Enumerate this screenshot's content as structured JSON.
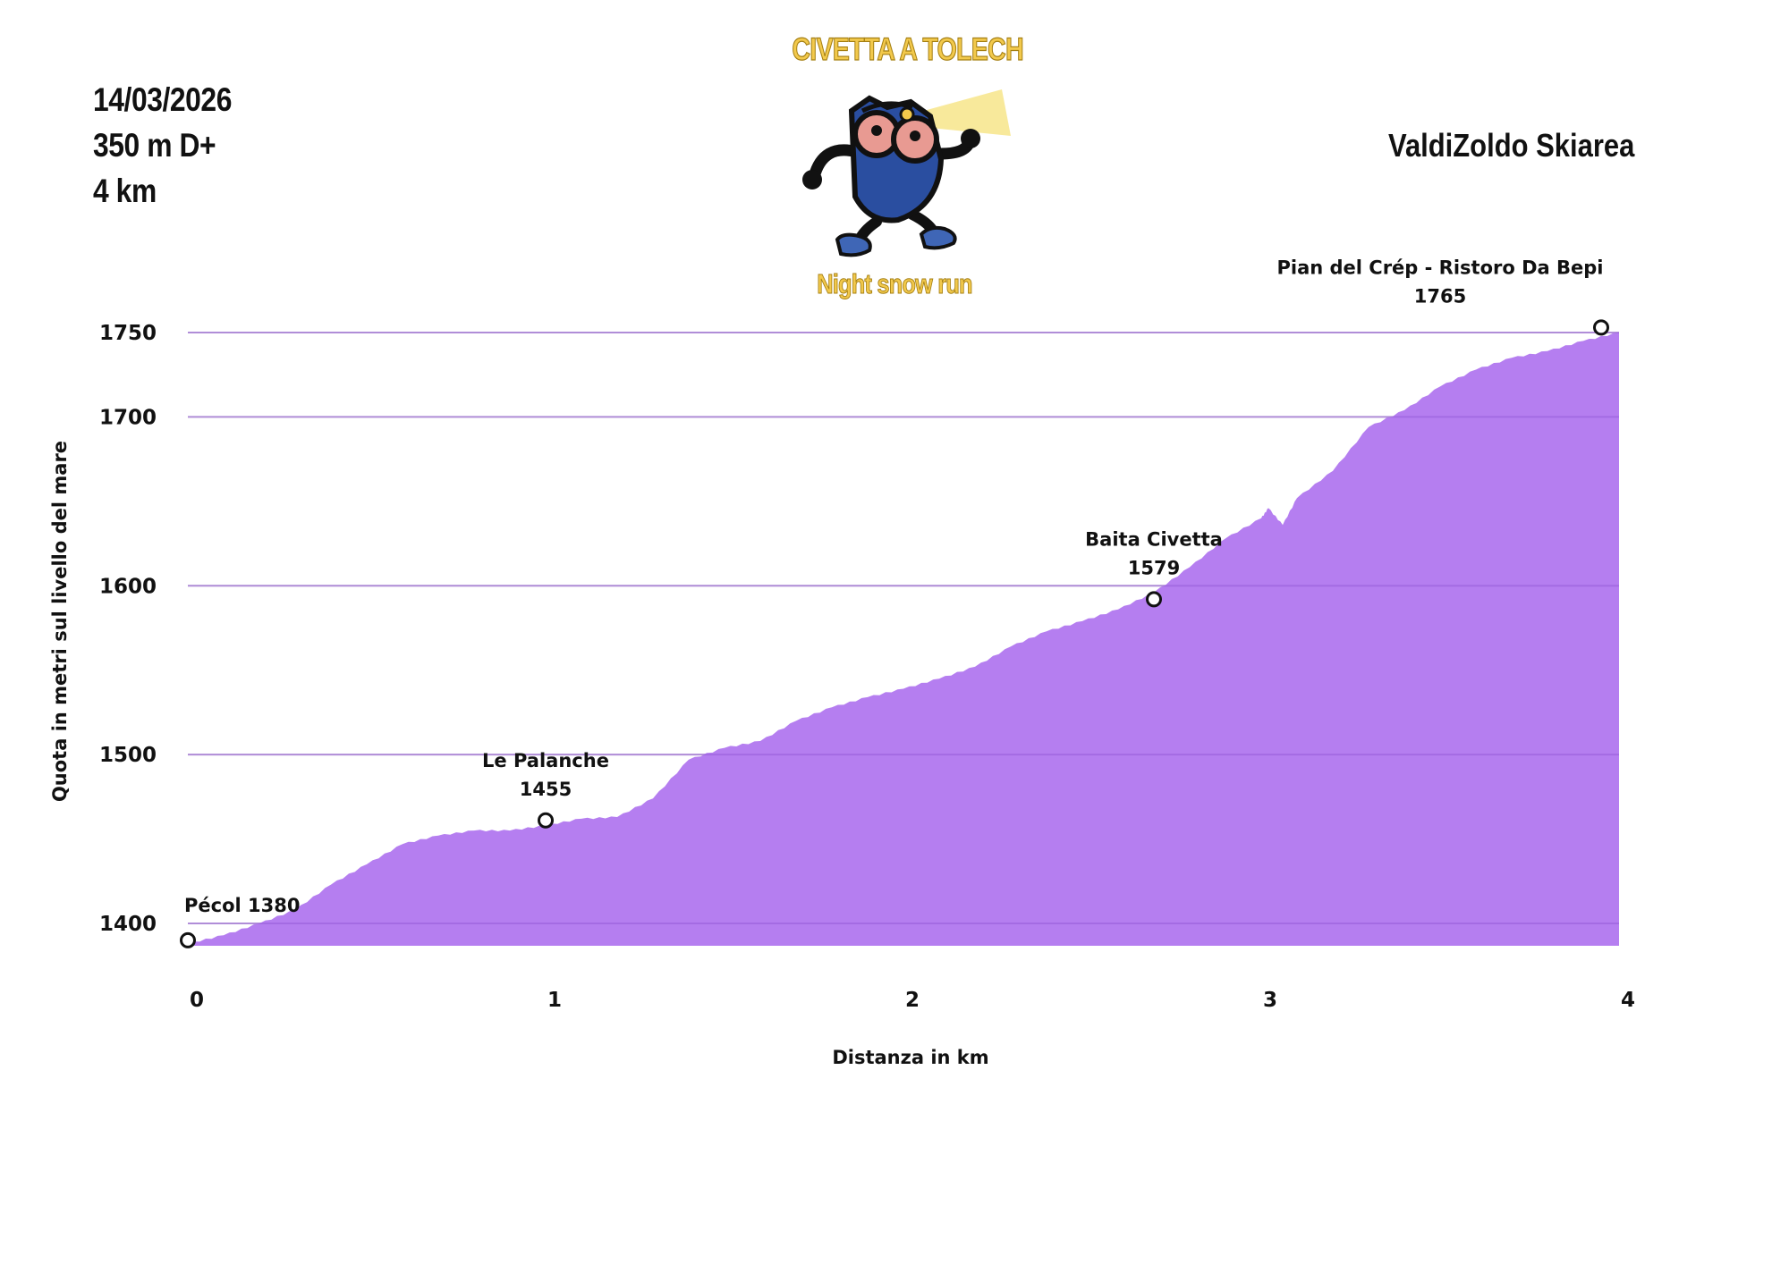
{
  "header": {
    "date": "14/03/2026",
    "elevation_gain": "350 m D+",
    "distance": "4 km",
    "venue": "ValdiZoldo Skiarea"
  },
  "brand": {
    "title": "CIVETTA A TOLECH",
    "subtitle": "Night snow run",
    "mascot_icon": "owl-runner-headlamp-icon"
  },
  "colors": {
    "fill": "#b57ef0",
    "gridline": "#d3d3d3",
    "brand_yellow": "#f2c94c"
  },
  "chart_data": {
    "type": "area",
    "title": "",
    "xlabel": "Distanza in km",
    "ylabel": "Quota in metri sul livello del mare",
    "xlim": [
      0,
      4.0
    ],
    "ylim": [
      1387,
      1750
    ],
    "x_ticks": [
      0,
      1,
      2,
      3,
      4
    ],
    "y_ticks": [
      1400,
      1500,
      1600,
      1700,
      1750
    ],
    "grid": true,
    "x": [
      0,
      0.1,
      0.2,
      0.3,
      0.4,
      0.5,
      0.6,
      0.7,
      0.8,
      0.9,
      1.0,
      1.1,
      1.2,
      1.3,
      1.4,
      1.5,
      1.6,
      1.7,
      1.8,
      1.9,
      2.0,
      2.1,
      2.2,
      2.3,
      2.4,
      2.5,
      2.6,
      2.7,
      2.8,
      2.9,
      3.0,
      3.02,
      3.06,
      3.1,
      3.2,
      3.3,
      3.4,
      3.5,
      3.6,
      3.7,
      3.8,
      3.9,
      4.0
    ],
    "y": [
      1388,
      1393,
      1400,
      1408,
      1423,
      1435,
      1447,
      1452,
      1455,
      1455,
      1458,
      1462,
      1463,
      1474,
      1497,
      1504,
      1508,
      1520,
      1528,
      1534,
      1539,
      1545,
      1552,
      1564,
      1573,
      1579,
      1586,
      1596,
      1611,
      1628,
      1640,
      1646,
      1636,
      1652,
      1668,
      1694,
      1704,
      1718,
      1728,
      1735,
      1739,
      1745,
      1750
    ],
    "waypoints": [
      {
        "name": "Pécol 1380",
        "x": 0.0,
        "y": 1390
      },
      {
        "name": "Le Palanche",
        "elevation": "1455",
        "x": 1.0,
        "y": 1461
      },
      {
        "name": "Baita Civetta",
        "elevation": "1579",
        "x": 2.7,
        "y": 1592
      },
      {
        "name": "Pian del Crép - Ristoro Da Bepi",
        "elevation": "1765",
        "x": 3.95,
        "y": 1753
      }
    ]
  }
}
